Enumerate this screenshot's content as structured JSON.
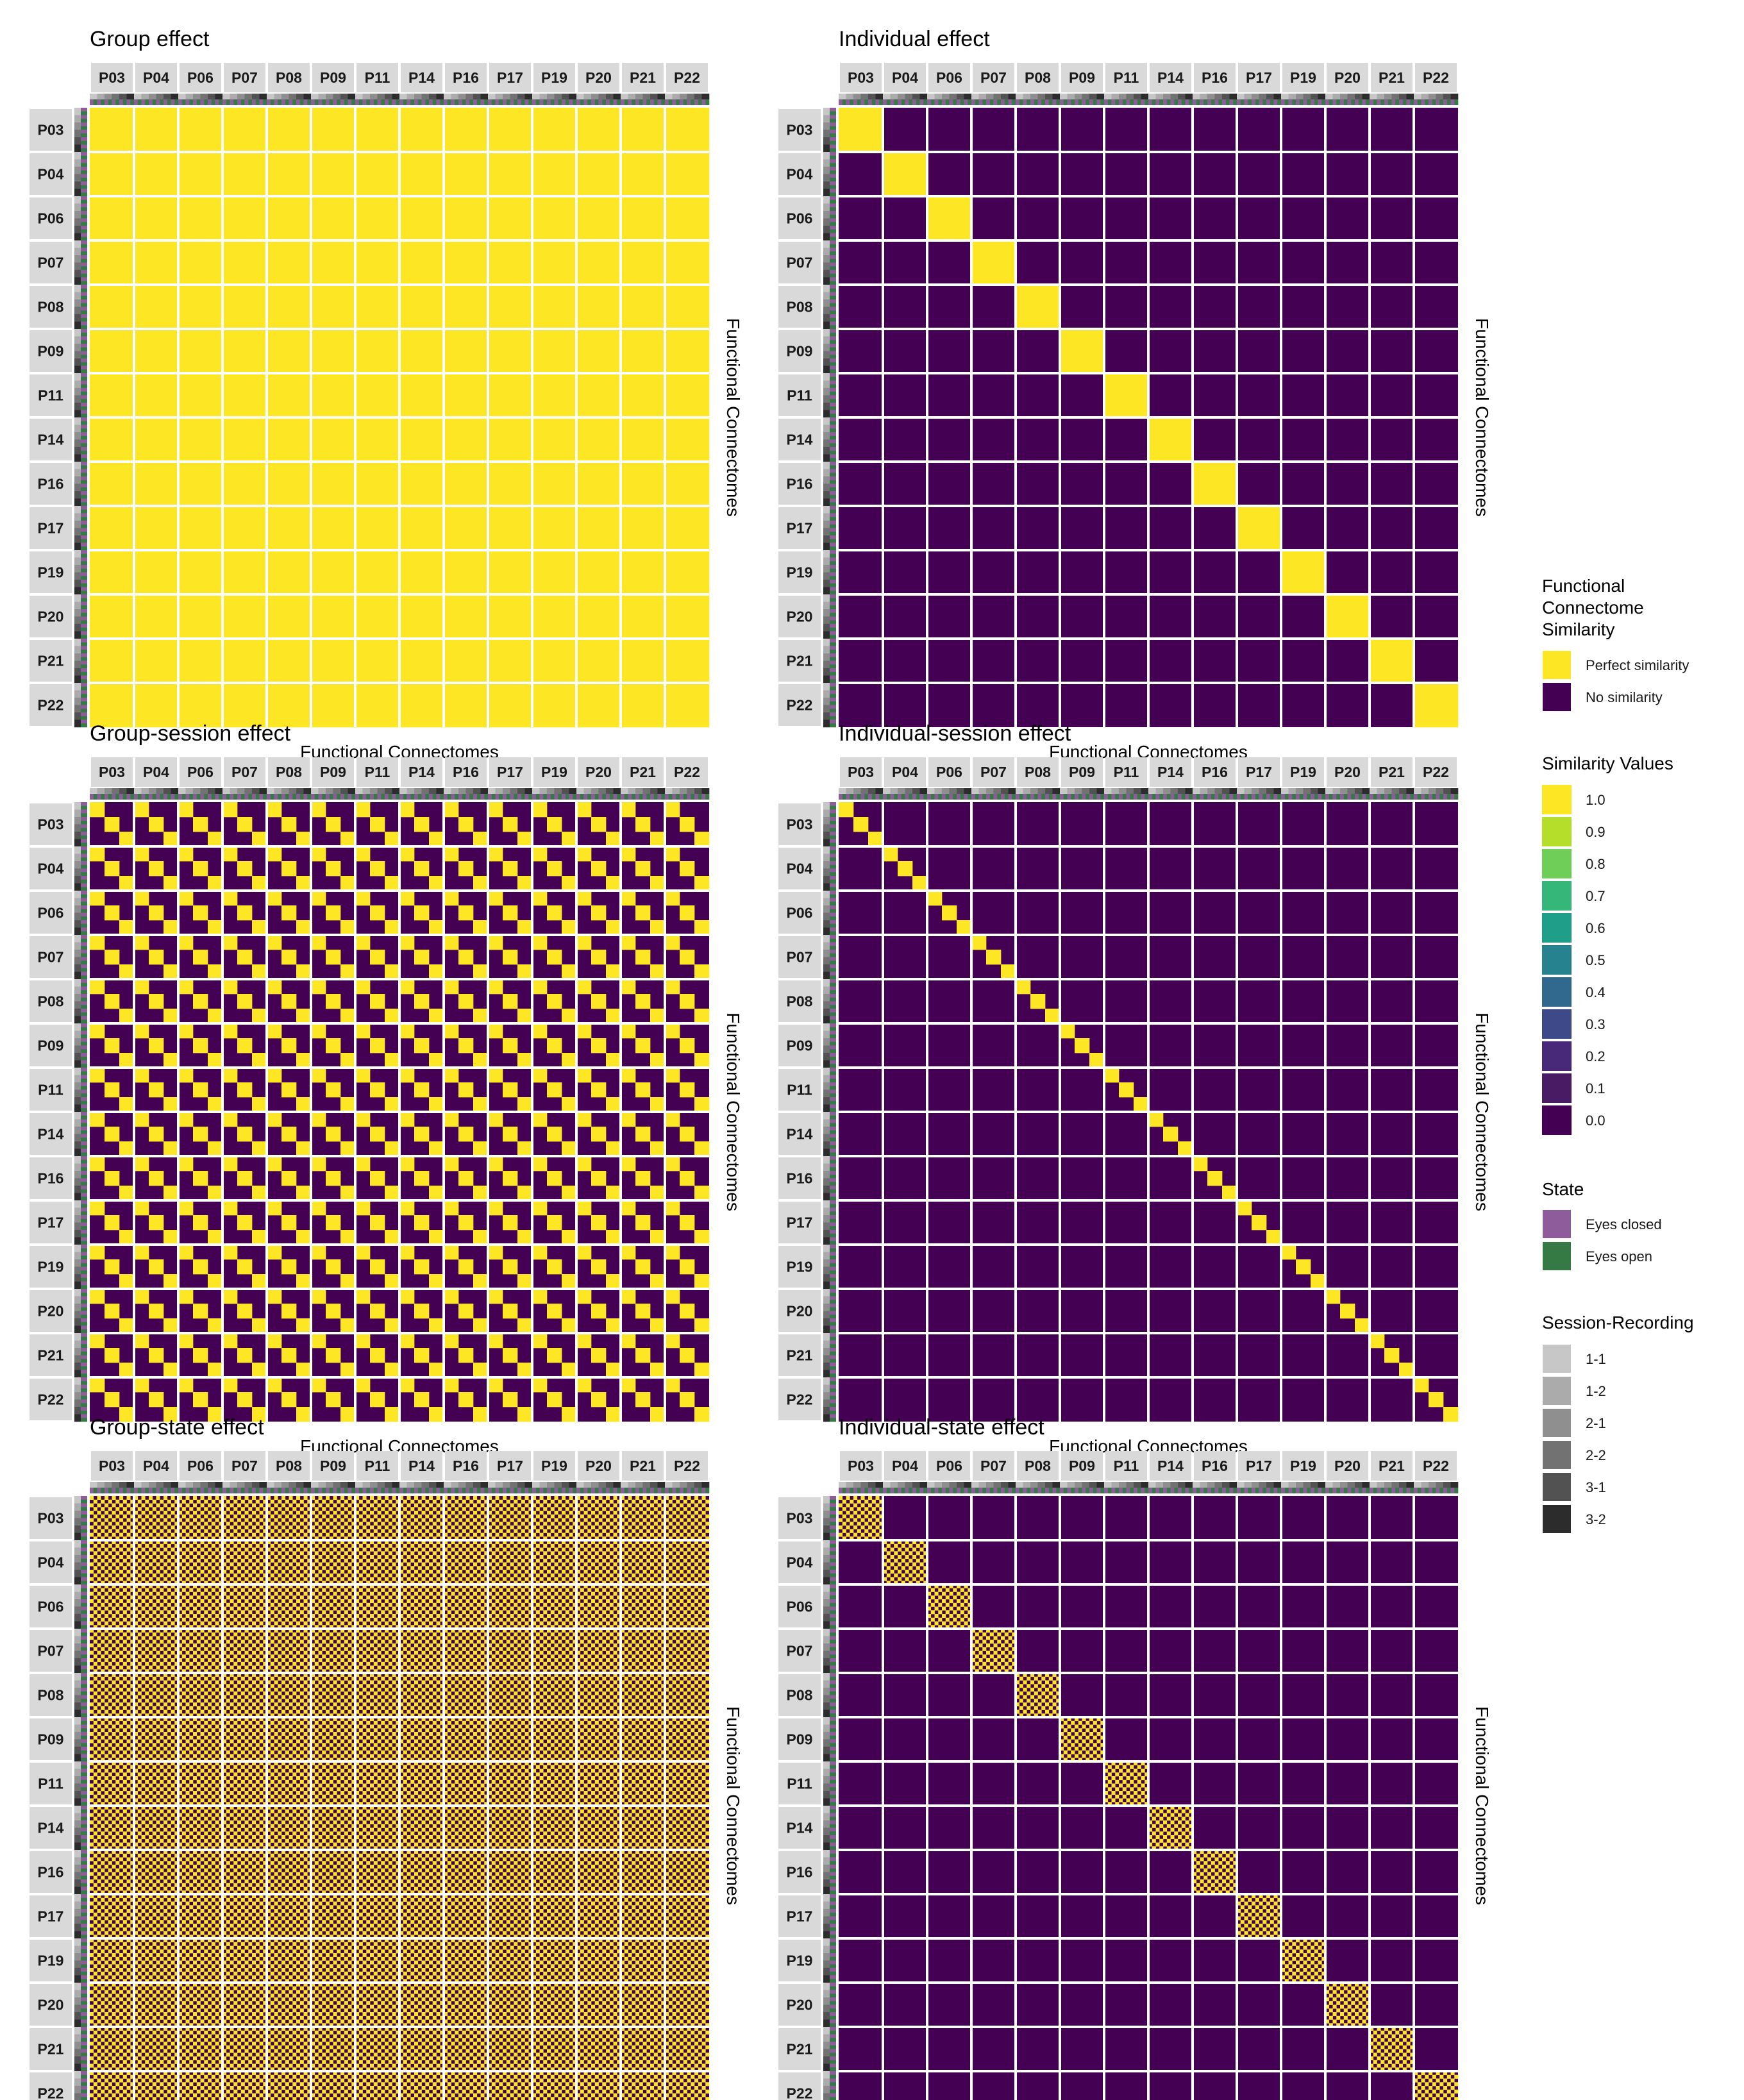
{
  "participants": [
    "P03",
    "P04",
    "P06",
    "P07",
    "P08",
    "P09",
    "P11",
    "P14",
    "P16",
    "P17",
    "P19",
    "P20",
    "P21",
    "P22"
  ],
  "axis_labels": {
    "x": "Functional Connectomes",
    "y": "Functional Connectomes"
  },
  "colors": {
    "perfect": "#FDE725",
    "none": "#440154",
    "eyes_closed": "#8E5C9B",
    "eyes_open": "#357A45",
    "strip": "#D9D9D9",
    "grid": "#FFFFFF"
  },
  "chart_data": [
    {
      "type": "heatmap",
      "title": "Group effect",
      "rule": "group",
      "xlabel": "Functional Connectomes",
      "ylabel": "Functional Connectomes",
      "cells_per_participant": 12,
      "value_range": [
        0,
        1
      ],
      "description_of_values": "all pairs = 1"
    },
    {
      "type": "heatmap",
      "title": "Individual effect",
      "rule": "individual",
      "xlabel": "Functional Connectomes",
      "ylabel": "Functional Connectomes",
      "cells_per_participant": 12,
      "value_range": [
        0,
        1
      ],
      "description_of_values": "1 when same participant, else 0"
    },
    {
      "type": "heatmap",
      "title": "Group-session effect",
      "rule": "group-session",
      "xlabel": "Functional Connectomes",
      "ylabel": "Functional Connectomes",
      "cells_per_participant": 12,
      "value_range": [
        0,
        1
      ],
      "description_of_values": "1 when same session, else 0"
    },
    {
      "type": "heatmap",
      "title": "Individual-session effect",
      "rule": "individual-session",
      "xlabel": "Functional Connectomes",
      "ylabel": "Functional Connectomes",
      "cells_per_participant": 12,
      "value_range": [
        0,
        1
      ],
      "description_of_values": "1 when same participant and same session, else 0"
    },
    {
      "type": "heatmap",
      "title": "Group-state effect",
      "rule": "group-state",
      "xlabel": "Functional Connectomes",
      "ylabel": "Functional Connectomes",
      "cells_per_participant": 12,
      "value_range": [
        0,
        1
      ],
      "description_of_values": "1 when same state, else 0"
    },
    {
      "type": "heatmap",
      "title": "Individual-state effect",
      "rule": "individual-state",
      "xlabel": "Functional Connectomes",
      "ylabel": "Functional Connectomes",
      "cells_per_participant": 12,
      "value_range": [
        0,
        1
      ],
      "description_of_values": "1 when same participant and same state, else 0"
    }
  ],
  "legends": {
    "similarity": {
      "title": [
        "Functional",
        "Connectome",
        "Similarity"
      ],
      "items": [
        {
          "label": "Perfect similarity",
          "color": "#FDE725"
        },
        {
          "label": "No similarity",
          "color": "#440154"
        }
      ]
    },
    "values": {
      "title": "Similarity Values",
      "items": [
        {
          "label": "1.0",
          "color": "#FDE725"
        },
        {
          "label": "0.9",
          "color": "#B5DE2B"
        },
        {
          "label": "0.8",
          "color": "#6ECE58"
        },
        {
          "label": "0.7",
          "color": "#35B779"
        },
        {
          "label": "0.6",
          "color": "#1F9E89"
        },
        {
          "label": "0.5",
          "color": "#26828E"
        },
        {
          "label": "0.4",
          "color": "#31688E"
        },
        {
          "label": "0.3",
          "color": "#3E4989"
        },
        {
          "label": "0.2",
          "color": "#482878"
        },
        {
          "label": "0.1",
          "color": "#481B64"
        },
        {
          "label": "0.0",
          "color": "#440154"
        }
      ]
    },
    "state": {
      "title": "State",
      "items": [
        {
          "label": "Eyes closed",
          "color": "#8E5C9B"
        },
        {
          "label": "Eyes open",
          "color": "#357A45"
        }
      ]
    },
    "session_recording": {
      "title": "Session-Recording",
      "items": [
        {
          "label": "1-1",
          "color": "#C7C7C7"
        },
        {
          "label": "1-2",
          "color": "#ABABAB"
        },
        {
          "label": "2-1",
          "color": "#8F8F8F"
        },
        {
          "label": "2-2",
          "color": "#727272"
        },
        {
          "label": "3-1",
          "color": "#525252"
        },
        {
          "label": "3-2",
          "color": "#2C2C2C"
        }
      ]
    }
  }
}
